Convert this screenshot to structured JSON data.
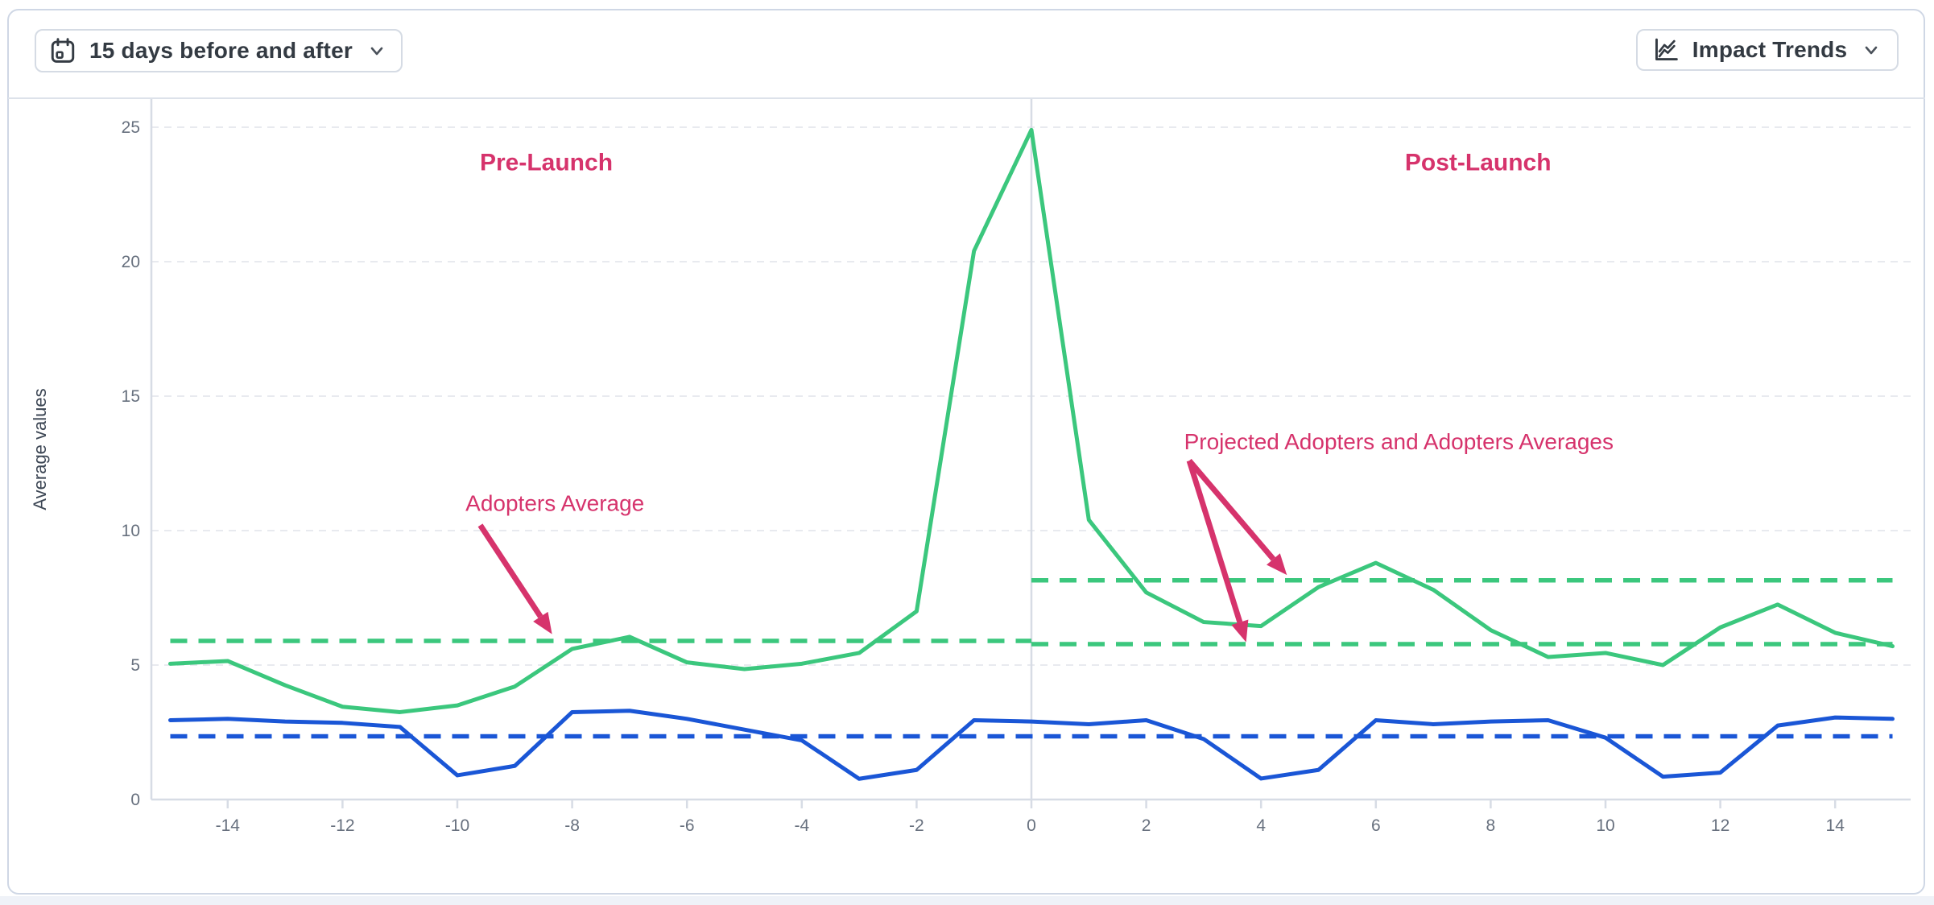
{
  "toolbar": {
    "date_range": {
      "label": "15 days before and after",
      "icon": "calendar-icon",
      "chevron": "chevron-down-icon"
    },
    "trends": {
      "label": "Impact Trends",
      "icon": "line-chart-icon",
      "chevron": "chevron-down-icon"
    }
  },
  "chart_data": {
    "type": "line",
    "title": "",
    "xlabel": "",
    "ylabel": "Average values",
    "ylim": [
      0,
      26
    ],
    "xlim": [
      -15.4,
      15.4
    ],
    "grid": "horizontal-dashed",
    "y_ticks": [
      0,
      5,
      10,
      15,
      20,
      25
    ],
    "x_ticks": [
      -14,
      -12,
      -10,
      -8,
      -6,
      -4,
      -2,
      0,
      2,
      4,
      6,
      8,
      10,
      12,
      14
    ],
    "x": [
      -15,
      -14,
      -13,
      -12,
      -11,
      -10,
      -9,
      -8,
      -7,
      -6,
      -5,
      -4,
      -3,
      -2,
      -1,
      0,
      1,
      2,
      3,
      4,
      5,
      6,
      7,
      8,
      9,
      10,
      11,
      12,
      13,
      14,
      15
    ],
    "series": [
      {
        "name": "adopters-green-line",
        "color": "#3bc77d",
        "values": [
          5.05,
          5.15,
          4.25,
          3.45,
          3.25,
          3.5,
          4.2,
          5.6,
          6.05,
          5.1,
          4.85,
          5.05,
          5.45,
          7.0,
          20.4,
          24.9,
          10.4,
          7.7,
          6.6,
          6.45,
          7.9,
          8.8,
          7.8,
          6.3,
          5.3,
          5.45,
          5.0,
          6.4,
          7.25,
          6.2,
          5.7
        ]
      },
      {
        "name": "comparison-blue-line",
        "color": "#1a56d6",
        "values": [
          2.95,
          3.0,
          2.9,
          2.85,
          2.7,
          0.9,
          1.25,
          3.25,
          3.3,
          3.0,
          2.6,
          2.2,
          0.77,
          1.1,
          2.95,
          2.9,
          2.8,
          2.95,
          2.25,
          0.78,
          1.1,
          2.95,
          2.8,
          2.9,
          2.95,
          2.3,
          0.85,
          1.0,
          2.75,
          3.05,
          3.0
        ]
      }
    ],
    "reference_lines": [
      {
        "name": "adopters-average-pre",
        "value": 5.9,
        "from": -15,
        "to": 0,
        "color": "#3bc77d"
      },
      {
        "name": "adopters-average-post",
        "value": 5.78,
        "from": 0,
        "to": 15,
        "color": "#3bc77d"
      },
      {
        "name": "projected-adopters-average-post",
        "value": 8.15,
        "from": 0,
        "to": 15,
        "color": "#3bc77d"
      },
      {
        "name": "comparison-average",
        "value": 2.35,
        "from": -15,
        "to": 15,
        "color": "#1a56d6"
      }
    ],
    "vertical_line_x": 0,
    "region_labels": [
      {
        "name": "pre-launch-label",
        "text": "Pre-Launch",
        "x": -8.45,
        "y": 23.7
      },
      {
        "name": "post-launch-label",
        "text": "Post-Launch",
        "x": 7.78,
        "y": 23.7
      }
    ],
    "annotations": [
      {
        "name": "adopters-average-annotation",
        "text": "Adopters Average",
        "text_x": -8.3,
        "text_y": 11.0,
        "arrows": [
          {
            "x1": -9.6,
            "y1": 10.2,
            "x2": -8.35,
            "y2": 6.15
          }
        ]
      },
      {
        "name": "projected-adopters-annotation",
        "text": "Projected Adopters and Adopters Averages",
        "text_x": 6.4,
        "text_y": 13.3,
        "arrows": [
          {
            "x1": 2.75,
            "y1": 12.6,
            "x2": 4.45,
            "y2": 8.35
          },
          {
            "x1": 2.75,
            "y1": 12.6,
            "x2": 3.74,
            "y2": 5.85
          }
        ]
      }
    ],
    "annotation_color": "#d6336c",
    "axis_color": "#d7dce5",
    "gridline_color": "#e8eaef",
    "tick_text_color": "#67707e",
    "axis_title_color": "#3c4654"
  }
}
